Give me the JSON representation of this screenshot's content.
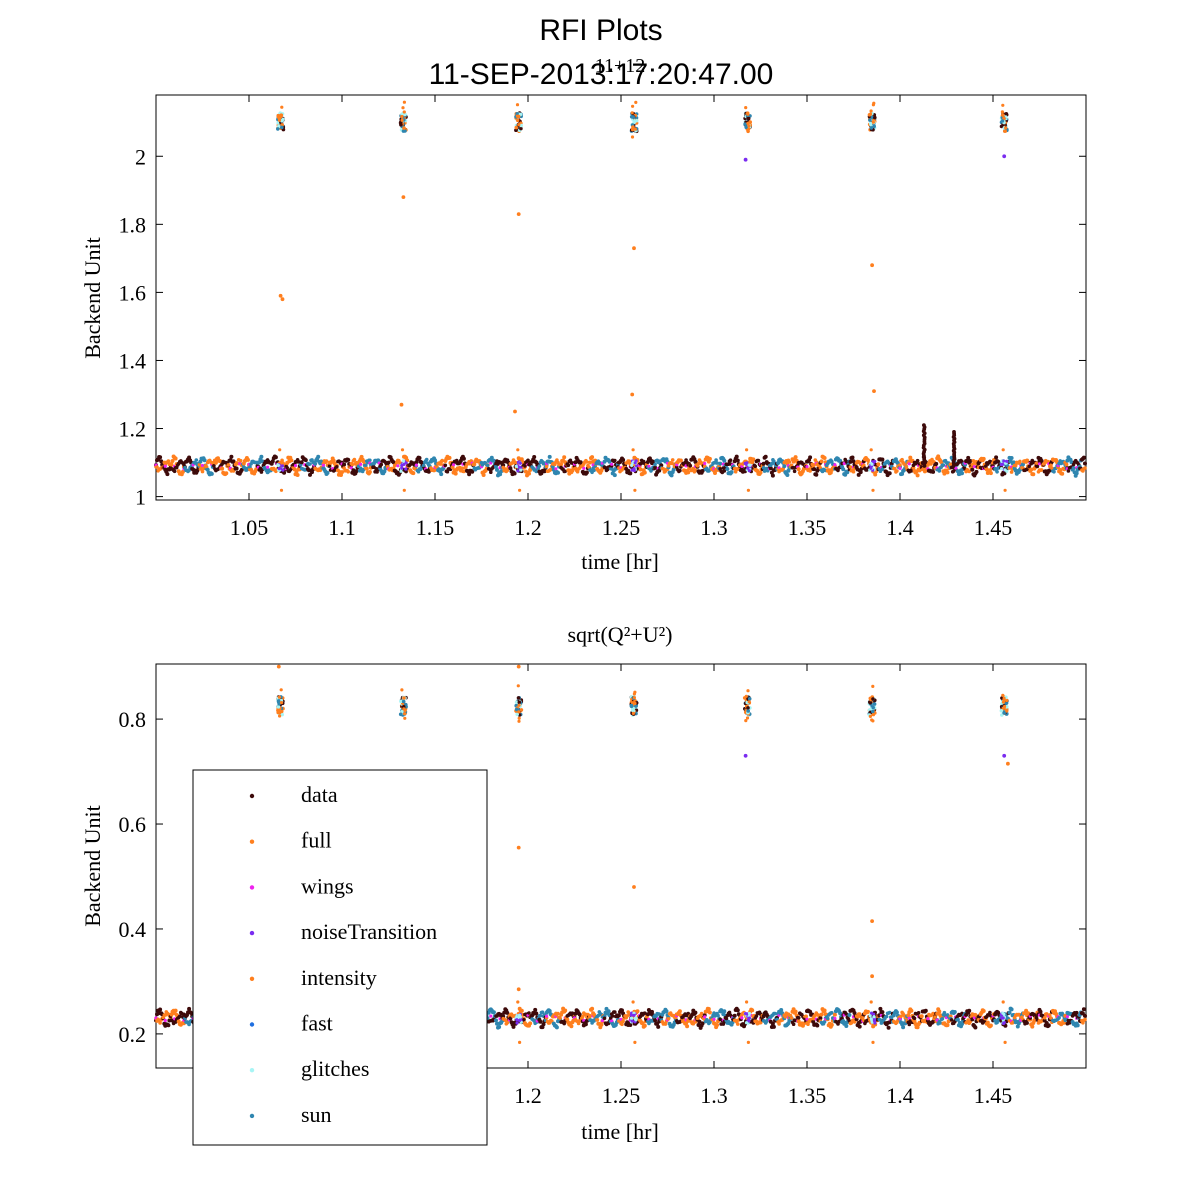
{
  "figure": {
    "title_line1": "RFI Plots",
    "title_line2": "11-SEP-2013:17:20:47.00",
    "overlap_label": "11+12"
  },
  "colors": {
    "data": "#3d0a0a",
    "full": "#ff7f1e",
    "wings": "#ee22ee",
    "noiseTransition": "#7a2cf0",
    "intensity": "#ff7f1e",
    "fast": "#1f6fe0",
    "glitches": "#a8f5f5",
    "sun": "#2f86b0"
  },
  "legend": {
    "entries": [
      "data",
      "full",
      "wings",
      "noiseTransition",
      "intensity",
      "fast",
      "glitches",
      "sun"
    ]
  },
  "chart_data": [
    {
      "type": "scatter",
      "title": "",
      "xlabel": "time [hr]",
      "ylabel": "Backend Unit",
      "xlim": [
        1.0,
        1.5
      ],
      "ylim": [
        0.99,
        2.18
      ],
      "xticks": [
        1.05,
        1.1,
        1.15,
        1.2,
        1.25,
        1.3,
        1.35,
        1.4,
        1.45
      ],
      "xtick_labels": [
        "1.05",
        "1.1",
        "1.15",
        "1.2",
        "1.25",
        "1.3",
        "1.35",
        "1.4",
        "1.45"
      ],
      "yticks": [
        1,
        1.2,
        1.4,
        1.6,
        1.8,
        2
      ],
      "ytick_labels": [
        "1",
        "1.2",
        "1.4",
        "1.6",
        "1.8",
        "2"
      ],
      "baseline": 1.09,
      "cluster_level": 2.1,
      "cluster_times": [
        1.067,
        1.133,
        1.195,
        1.257,
        1.318,
        1.385,
        1.456
      ],
      "outliers": [
        {
          "x": 1.067,
          "y": 1.59,
          "series": "full"
        },
        {
          "x": 1.068,
          "y": 1.58,
          "series": "full"
        },
        {
          "x": 1.133,
          "y": 1.88,
          "series": "full"
        },
        {
          "x": 1.195,
          "y": 1.83,
          "series": "full"
        },
        {
          "x": 1.257,
          "y": 1.73,
          "series": "full"
        },
        {
          "x": 1.385,
          "y": 1.68,
          "series": "full"
        },
        {
          "x": 1.132,
          "y": 1.27,
          "series": "full"
        },
        {
          "x": 1.193,
          "y": 1.25,
          "series": "full"
        },
        {
          "x": 1.256,
          "y": 1.3,
          "series": "full"
        },
        {
          "x": 1.386,
          "y": 1.31,
          "series": "full"
        },
        {
          "x": 1.317,
          "y": 1.99,
          "series": "noiseTransition"
        },
        {
          "x": 1.456,
          "y": 2.0,
          "series": "noiseTransition"
        }
      ],
      "spikes": [
        {
          "x": 1.413,
          "y": 1.21
        },
        {
          "x": 1.429,
          "y": 1.19
        }
      ],
      "grid": false
    },
    {
      "type": "scatter",
      "title": "sqrt(Q²+U²)",
      "xlabel": "time [hr]",
      "ylabel": "Backend Unit",
      "xlim": [
        1.0,
        1.5
      ],
      "ylim": [
        0.135,
        0.905
      ],
      "xticks": [
        1.2,
        1.25,
        1.3,
        1.35,
        1.4,
        1.45
      ],
      "xtick_labels": [
        "1.2",
        "1.25",
        "1.3",
        "1.35",
        "1.4",
        "1.45"
      ],
      "yticks": [
        0.2,
        0.4,
        0.6,
        0.8
      ],
      "ytick_labels": [
        "0.2",
        "0.4",
        "0.6",
        "0.8"
      ],
      "baseline": 0.23,
      "cluster_level": 0.825,
      "cluster_times": [
        1.067,
        1.133,
        1.195,
        1.257,
        1.318,
        1.385,
        1.456
      ],
      "outliers": [
        {
          "x": 1.195,
          "y": 0.555,
          "series": "full"
        },
        {
          "x": 1.257,
          "y": 0.48,
          "series": "full"
        },
        {
          "x": 1.385,
          "y": 0.415,
          "series": "full"
        },
        {
          "x": 1.317,
          "y": 0.73,
          "series": "noiseTransition"
        },
        {
          "x": 1.456,
          "y": 0.73,
          "series": "noiseTransition"
        },
        {
          "x": 1.458,
          "y": 0.715,
          "series": "full"
        },
        {
          "x": 1.385,
          "y": 0.31,
          "series": "full"
        },
        {
          "x": 1.195,
          "y": 0.285,
          "series": "full"
        },
        {
          "x": 1.066,
          "y": 0.9,
          "series": "full"
        },
        {
          "x": 1.195,
          "y": 0.9,
          "series": "full"
        }
      ],
      "spikes": [],
      "grid": false
    }
  ]
}
